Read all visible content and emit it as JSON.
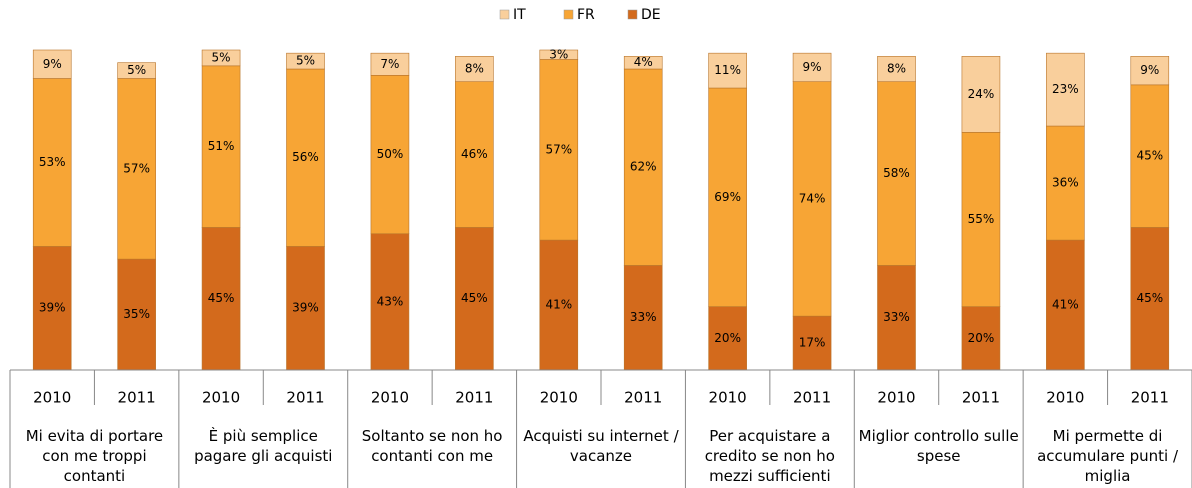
{
  "chart_data": {
    "type": "stacked_bar",
    "categories": [
      "2010",
      "2011",
      "2010",
      "2011",
      "2010",
      "2011",
      "2010",
      "2011",
      "2010",
      "2011",
      "2010",
      "2011",
      "2010",
      "2011"
    ],
    "groups": [
      "Mi evita di portare con me troppi contanti",
      "È più semplice pagare gli acquisti",
      "Soltanto se non ho contanti con me",
      "Acquisti su internet / vacanze",
      "Per acquistare a credito se non ho mezzi sufficienti",
      "Miglior controllo sulle spese",
      "Mi permette di accumulare punti / miglia"
    ],
    "series": [
      {
        "name": "IT",
        "color": "#f9cf9c",
        "values": [
          9,
          5,
          5,
          5,
          7,
          8,
          3,
          4,
          11,
          9,
          8,
          24,
          23,
          9
        ],
        "value_labels": [
          "9%",
          "5%",
          "5%",
          "5%",
          "7%",
          "8%",
          "3%",
          "4%",
          "11%",
          "9%",
          "8%",
          "24%",
          "23%",
          "9%"
        ]
      },
      {
        "name": "FR",
        "color": "#f7a535",
        "values": [
          53,
          57,
          51,
          56,
          50,
          46,
          57,
          62,
          69,
          74,
          58,
          55,
          36,
          45
        ],
        "value_labels": [
          "53%",
          "57%",
          "51%",
          "56%",
          "50%",
          "46%",
          "57%",
          "62%",
          "69%",
          "74%",
          "58%",
          "55%",
          "36%",
          "45%"
        ]
      },
      {
        "name": "DE",
        "color": "#d36a1c",
        "values": [
          39,
          35,
          45,
          39,
          43,
          45,
          41,
          33,
          20,
          17,
          33,
          20,
          41,
          45
        ],
        "value_labels": [
          "39%",
          "35%",
          "45%",
          "39%",
          "43%",
          "45%",
          "41%",
          "33%",
          "20%",
          "17%",
          "33%",
          "20%",
          "41%",
          "45%"
        ]
      }
    ],
    "legend": "top"
  }
}
